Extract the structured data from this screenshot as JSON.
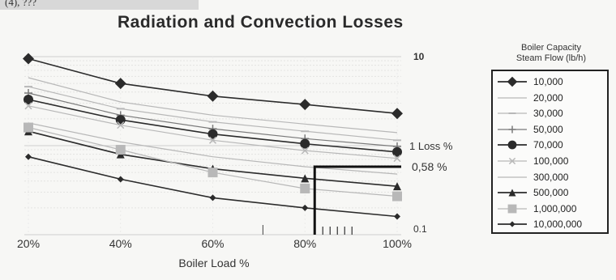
{
  "header_fragment": "(4), ???",
  "legend": {
    "title_line1": "Boiler Capacity",
    "title_line2": "Steam Flow (lb/h)"
  },
  "annotations": {
    "marker_value": "0,58 %"
  },
  "colors": {
    "strong": "#2b2b2b",
    "medium": "#7a7a7a",
    "light": "#b8b8b8"
  },
  "chart_data": {
    "type": "line",
    "title": "Radiation and Convection Losses",
    "xlabel": "Boiler Load %",
    "ylabel": "Loss %",
    "y_scale": "log",
    "ylim": [
      0.1,
      10
    ],
    "x_categories": [
      "20%",
      "40%",
      "60%",
      "80%",
      "100%"
    ],
    "y_ticks": [
      "10",
      "1 Loss %",
      "0.1"
    ],
    "grid": true,
    "legend_position": "right",
    "series": [
      {
        "name": "10,000",
        "values": [
          9.5,
          5.0,
          3.6,
          2.9,
          2.3
        ],
        "marker": "diamond",
        "style": "strong"
      },
      {
        "name": "20,000",
        "values": [
          5.8,
          3.1,
          2.2,
          1.75,
          1.4
        ],
        "marker": "none",
        "style": "light"
      },
      {
        "name": "30,000",
        "values": [
          4.6,
          2.6,
          1.85,
          1.45,
          1.15
        ],
        "marker": "dash",
        "style": "light"
      },
      {
        "name": "50,000",
        "values": [
          3.9,
          2.2,
          1.55,
          1.2,
          0.98
        ],
        "marker": "plus",
        "style": "medium"
      },
      {
        "name": "70,000",
        "values": [
          3.3,
          1.95,
          1.35,
          1.05,
          0.85
        ],
        "marker": "circle",
        "style": "strong"
      },
      {
        "name": "100,000",
        "values": [
          2.8,
          1.7,
          1.15,
          0.88,
          0.72
        ],
        "marker": "x",
        "style": "light"
      },
      {
        "name": "300,000",
        "values": [
          1.8,
          1.1,
          0.75,
          0.58,
          0.48
        ],
        "marker": "none",
        "style": "light"
      },
      {
        "name": "500,000",
        "values": [
          1.45,
          0.8,
          0.55,
          0.43,
          0.35
        ],
        "marker": "triangle",
        "style": "strong"
      },
      {
        "name": "1,000,000",
        "values": [
          1.6,
          0.9,
          0.5,
          0.33,
          0.27
        ],
        "marker": "square",
        "style": "light"
      },
      {
        "name": "10,000,000",
        "values": [
          0.75,
          0.42,
          0.26,
          0.2,
          0.16
        ],
        "marker": "diamond-small",
        "style": "strong"
      }
    ]
  }
}
